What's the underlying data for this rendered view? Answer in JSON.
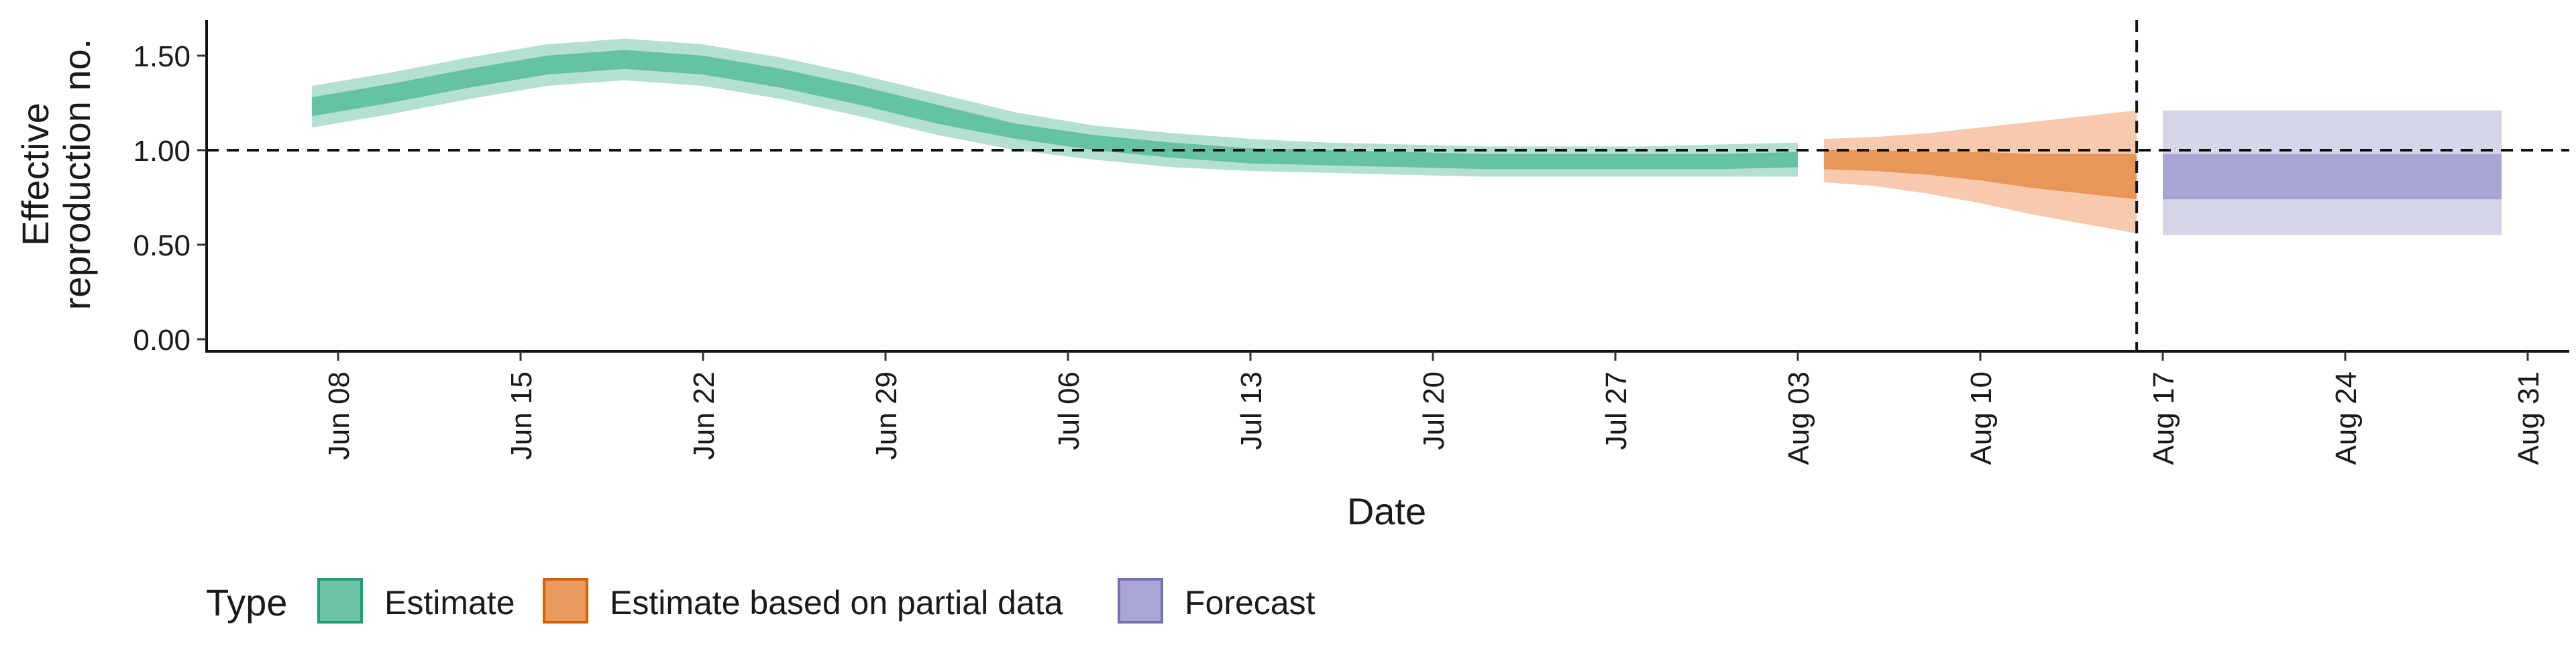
{
  "chart_data": {
    "type": "area",
    "xlabel": "Date",
    "ylabel": [
      "Effective",
      "reproduction no."
    ],
    "ylim": [
      0,
      1.62
    ],
    "yticks": [
      0.0,
      0.5,
      1.0,
      1.5
    ],
    "ytick_labels": [
      "0.00",
      "0.50",
      "1.00",
      "1.50"
    ],
    "xlim": [
      "2020-06-02",
      "2020-09-02"
    ],
    "xticks": [
      "2020-06-08",
      "2020-06-15",
      "2020-06-22",
      "2020-06-29",
      "2020-07-06",
      "2020-07-13",
      "2020-07-20",
      "2020-07-27",
      "2020-08-03",
      "2020-08-10",
      "2020-08-17",
      "2020-08-24",
      "2020-08-31"
    ],
    "xtick_labels": [
      "Jun 08",
      "Jun 15",
      "Jun 22",
      "Jun 29",
      "Jul 06",
      "Jul 13",
      "Jul 20",
      "Jul 27",
      "Aug 03",
      "Aug 10",
      "Aug 17",
      "Aug 24",
      "Aug 31"
    ],
    "hline": 1.0,
    "vline": "2020-08-16",
    "grid": false,
    "legend_position": "bottom-left",
    "legend_title": "Type",
    "series": [
      {
        "name": "Estimate",
        "color": "#66c2a5",
        "x": [
          "2020-06-07",
          "2020-06-10",
          "2020-06-13",
          "2020-06-16",
          "2020-06-19",
          "2020-06-22",
          "2020-06-25",
          "2020-06-28",
          "2020-07-01",
          "2020-07-04",
          "2020-07-07",
          "2020-07-10",
          "2020-07-13",
          "2020-07-16",
          "2020-07-19",
          "2020-07-22",
          "2020-07-25",
          "2020-07-28",
          "2020-07-31",
          "2020-08-03"
        ],
        "median": [
          1.23,
          1.3,
          1.38,
          1.45,
          1.48,
          1.45,
          1.38,
          1.29,
          1.19,
          1.1,
          1.04,
          1.0,
          0.97,
          0.96,
          0.95,
          0.94,
          0.94,
          0.94,
          0.94,
          0.95
        ],
        "lower_50": [
          1.18,
          1.25,
          1.33,
          1.4,
          1.43,
          1.4,
          1.33,
          1.24,
          1.14,
          1.06,
          1.0,
          0.96,
          0.93,
          0.92,
          0.91,
          0.9,
          0.9,
          0.9,
          0.9,
          0.91
        ],
        "upper_50": [
          1.28,
          1.35,
          1.43,
          1.5,
          1.53,
          1.5,
          1.43,
          1.34,
          1.24,
          1.14,
          1.08,
          1.04,
          1.01,
          1.0,
          0.99,
          0.98,
          0.98,
          0.98,
          0.98,
          0.99
        ],
        "lower_90": [
          1.12,
          1.19,
          1.27,
          1.34,
          1.37,
          1.34,
          1.27,
          1.18,
          1.08,
          1.0,
          0.95,
          0.91,
          0.89,
          0.88,
          0.87,
          0.86,
          0.86,
          0.86,
          0.86,
          0.86
        ],
        "upper_90": [
          1.34,
          1.41,
          1.49,
          1.56,
          1.59,
          1.56,
          1.49,
          1.4,
          1.3,
          1.2,
          1.13,
          1.09,
          1.06,
          1.04,
          1.03,
          1.02,
          1.02,
          1.02,
          1.03,
          1.04
        ]
      },
      {
        "name": "Estimate based on partial data",
        "color": "#fc8d62",
        "x": [
          "2020-08-04",
          "2020-08-06",
          "2020-08-08",
          "2020-08-10",
          "2020-08-12",
          "2020-08-14",
          "2020-08-16"
        ],
        "median": [
          0.95,
          0.94,
          0.93,
          0.91,
          0.89,
          0.87,
          0.86
        ],
        "lower_50": [
          0.9,
          0.89,
          0.87,
          0.84,
          0.8,
          0.77,
          0.74
        ],
        "upper_50": [
          1.0,
          1.0,
          0.99,
          0.99,
          0.98,
          0.98,
          0.98
        ],
        "lower_90": [
          0.83,
          0.81,
          0.77,
          0.72,
          0.66,
          0.61,
          0.56
        ],
        "upper_90": [
          1.06,
          1.07,
          1.09,
          1.12,
          1.15,
          1.18,
          1.21
        ]
      },
      {
        "name": "Forecast",
        "color": "#8da0cb",
        "x": [
          "2020-08-17",
          "2020-08-30"
        ],
        "median": [
          0.86,
          0.86
        ],
        "lower_50": [
          0.74,
          0.74
        ],
        "upper_50": [
          0.98,
          0.98
        ],
        "lower_90": [
          0.55,
          0.55
        ],
        "upper_90": [
          1.21,
          1.21
        ]
      }
    ]
  },
  "colors": {
    "estimate_light": "#b3e0d1",
    "estimate_mid": "#66c2a5",
    "partial_light": "#f7c9ad",
    "partial_mid": "#e8965a",
    "forecast_light": "#d6d6eb",
    "forecast_mid": "#a7a5d4",
    "legend_estimate": "#6cc3a6",
    "legend_estimate_border": "#1b9e77",
    "legend_partial": "#e99a5e",
    "legend_partial_border": "#d95f02",
    "legend_forecast": "#a9a6d6",
    "legend_forecast_border": "#7570b3"
  }
}
